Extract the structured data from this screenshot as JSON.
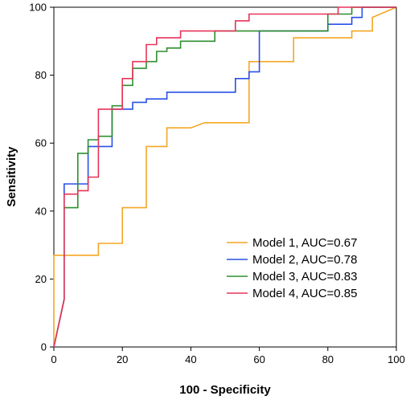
{
  "chart_data": {
    "type": "line",
    "title": "",
    "xlabel": "100 - Specificity",
    "ylabel": "Sensitivity",
    "xlim": [
      0,
      100
    ],
    "ylim": [
      0,
      100
    ],
    "x_ticks": [
      0,
      20,
      40,
      60,
      80,
      100
    ],
    "y_ticks": [
      0,
      20,
      40,
      60,
      80,
      100
    ],
    "grid": false,
    "legend_position": "bottom-right",
    "series": [
      {
        "name": "Model 1,  AUC=0.67",
        "color": "#f5a623",
        "x": [
          0,
          0,
          13,
          13,
          20,
          20,
          27,
          27,
          33,
          33,
          40,
          44,
          57,
          57,
          60,
          60,
          70,
          70,
          87,
          87,
          93,
          93,
          100
        ],
        "y": [
          0,
          27,
          27,
          30.5,
          30.5,
          41,
          41,
          59,
          59,
          64.5,
          64.5,
          66,
          66,
          84,
          84,
          84,
          84,
          91,
          91,
          93,
          93,
          97,
          100
        ]
      },
      {
        "name": "Model 2,  AUC=0.78",
        "color": "#2850e6",
        "x": [
          0,
          3,
          3,
          10,
          10,
          17,
          17,
          23,
          23,
          27,
          27,
          33,
          33,
          53,
          53,
          57,
          57,
          60,
          60,
          80,
          80,
          87,
          87,
          90,
          90,
          100
        ],
        "y": [
          0,
          14,
          48,
          48,
          59,
          59,
          70,
          70,
          72,
          72,
          73,
          73,
          75,
          75,
          79,
          79,
          81,
          81,
          93,
          93,
          95,
          95,
          97,
          97,
          100,
          100
        ]
      },
      {
        "name": "Model 3,  AUC=0.83",
        "color": "#2f8f2f",
        "x": [
          0,
          3,
          3,
          7,
          7,
          10,
          10,
          13,
          13,
          17,
          17,
          20,
          20,
          23,
          23,
          27,
          27,
          30,
          30,
          33,
          33,
          37,
          37,
          47,
          47,
          80,
          80,
          87,
          87,
          100
        ],
        "y": [
          0,
          14,
          41,
          41,
          57,
          57,
          61,
          61,
          62,
          62,
          71,
          71,
          77,
          77,
          82,
          82,
          84,
          84,
          87,
          87,
          88,
          88,
          90,
          90,
          93,
          93,
          98,
          98,
          100,
          100
        ]
      },
      {
        "name": "Model 4,  AUC=0.85",
        "color": "#e8335a",
        "x": [
          0,
          3,
          3,
          7,
          7,
          10,
          10,
          13,
          13,
          20,
          20,
          23,
          23,
          27,
          27,
          30,
          30,
          37,
          37,
          53,
          53,
          57,
          57,
          83,
          83,
          100
        ],
        "y": [
          0,
          14,
          45,
          45,
          46,
          46,
          50,
          50,
          70,
          70,
          79,
          79,
          84,
          84,
          89,
          89,
          91,
          91,
          93,
          93,
          96,
          96,
          98,
          98,
          100,
          100
        ]
      }
    ]
  }
}
